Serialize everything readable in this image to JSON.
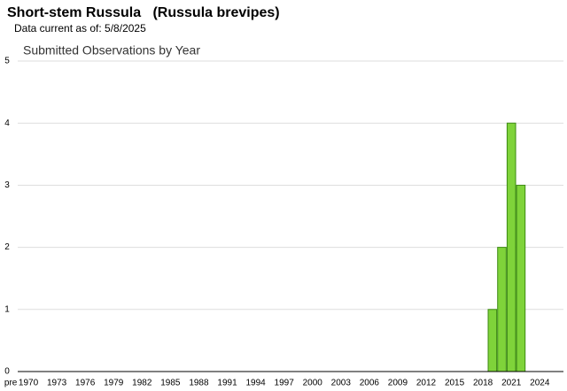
{
  "chart_data": {
    "type": "bar",
    "title": "Short-stem Russula   (Russula brevipes)",
    "subtitle": "Data current as of: 5/8/2025",
    "chart_title": "Submitted Observations by Year",
    "categories": [
      "pre",
      "1970",
      null,
      null,
      "1973",
      null,
      null,
      "1976",
      null,
      null,
      "1979",
      null,
      null,
      "1982",
      null,
      null,
      "1985",
      null,
      null,
      "1988",
      null,
      null,
      "1991",
      null,
      null,
      "1994",
      null,
      null,
      "1997",
      null,
      null,
      "2000",
      null,
      null,
      "2003",
      null,
      null,
      "2006",
      null,
      null,
      "2009",
      null,
      null,
      "2012",
      null,
      null,
      "2015",
      null,
      null,
      "2018",
      null,
      null,
      "2021",
      null,
      null,
      "2024",
      null,
      null
    ],
    "values": [
      0,
      0,
      0,
      0,
      0,
      0,
      0,
      0,
      0,
      0,
      0,
      0,
      0,
      0,
      0,
      0,
      0,
      0,
      0,
      0,
      0,
      0,
      0,
      0,
      0,
      0,
      0,
      0,
      0,
      0,
      0,
      0,
      0,
      0,
      0,
      0,
      0,
      0,
      0,
      0,
      0,
      0,
      0,
      0,
      0,
      0,
      0,
      0,
      0,
      0,
      1,
      2,
      4,
      3,
      0,
      0,
      0,
      0
    ],
    "color": "#7fd33a",
    "ylim": [
      0,
      5
    ],
    "yticks": [
      0,
      1,
      2,
      3,
      4,
      5
    ],
    "grid": true
  }
}
